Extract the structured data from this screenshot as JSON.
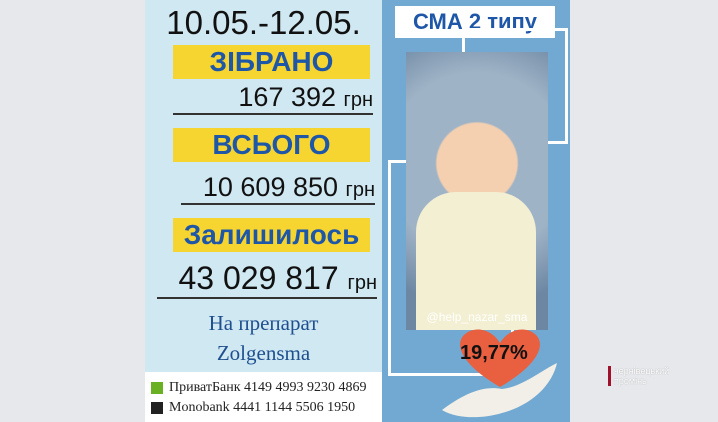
{
  "left": {
    "dates": "10.05.-12.05.",
    "collected_label": "ЗІБРАНО",
    "collected_amount": "167 392",
    "total_label": "ВСЬОГО",
    "total_amount": "10 609 850",
    "remaining_label": "Залишилось",
    "remaining_amount": "43 029 817",
    "currency": "грн",
    "drug_line1": "На препарат",
    "drug_line2": "Zolgensma"
  },
  "banks": [
    {
      "name": "ПриватБанк 4149 4993 9230 4869",
      "icon": "privatbank-icon",
      "color": "#6ab023"
    },
    {
      "name": "Monobank 4441 1144 5506 1950",
      "icon": "monobank-icon",
      "color": "#222222"
    }
  ],
  "right": {
    "title": "СМА 2 типу",
    "instagram": "@help_nazar_sma",
    "percent": "19,77%",
    "heart_color": "#e8603f"
  },
  "channel_logo": {
    "line1": "чернівецький",
    "line2": "промінь"
  }
}
